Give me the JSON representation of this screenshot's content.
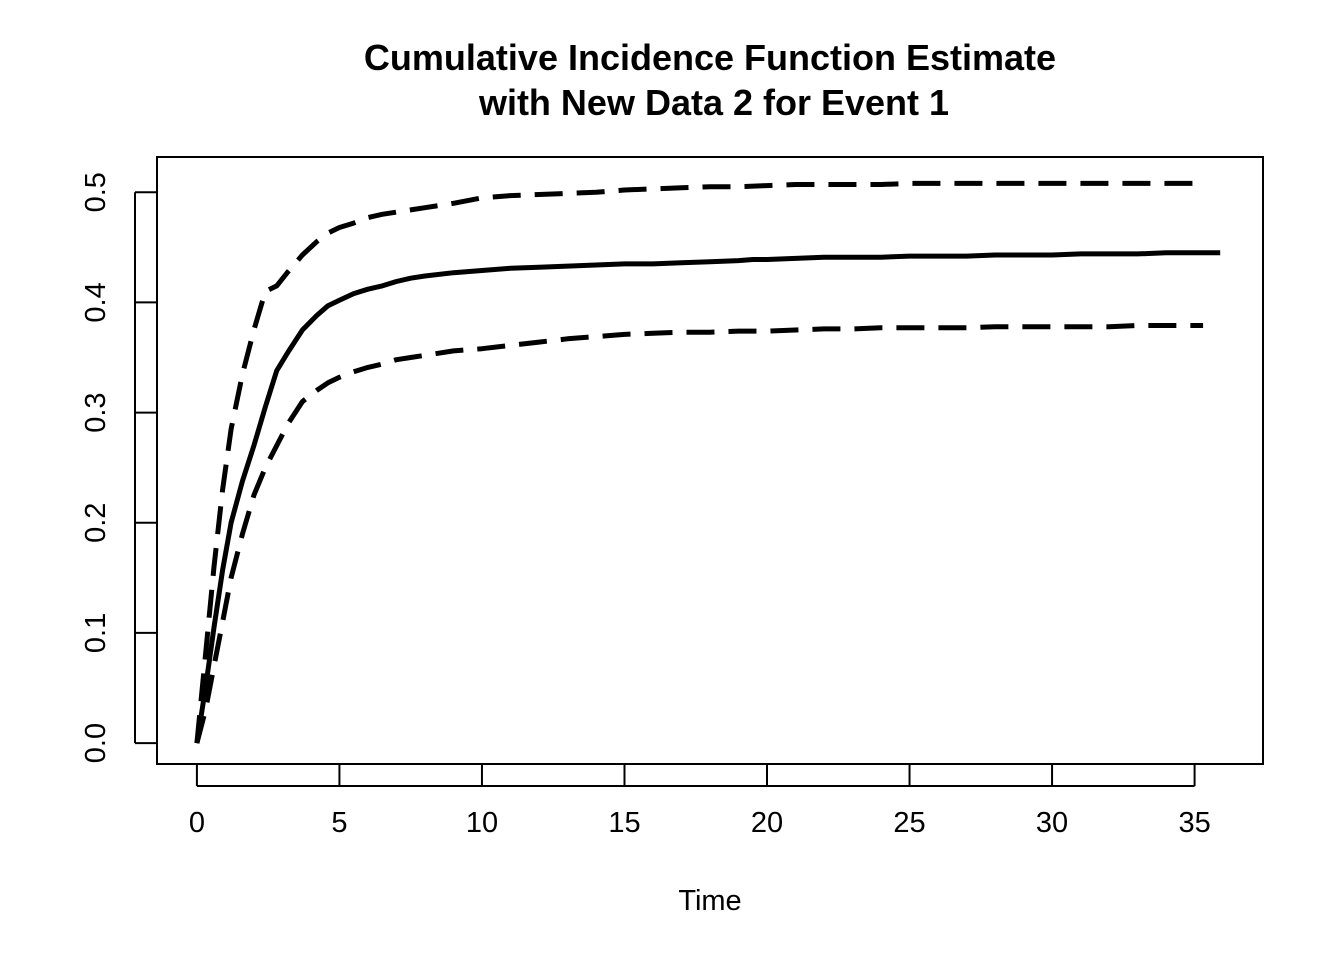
{
  "chart_data": {
    "type": "line",
    "title_line1": "Cumulative Incidence Function Estimate",
    "title_line2": "with New Data 2 for Event 1",
    "xlabel": "Time",
    "ylabel": "",
    "xlim": [
      -1.4,
      37.4
    ],
    "ylim": [
      -0.019,
      0.532
    ],
    "xticks": [
      0,
      5,
      10,
      15,
      20,
      25,
      30,
      35
    ],
    "xtick_labels": [
      "0",
      "5",
      "10",
      "15",
      "20",
      "25",
      "30",
      "35"
    ],
    "yticks": [
      0.0,
      0.1,
      0.2,
      0.3,
      0.4,
      0.5
    ],
    "ytick_labels": [
      "0.0",
      "0.1",
      "0.2",
      "0.3",
      "0.4",
      "0.5"
    ],
    "grid": false,
    "colors": {
      "line": "#000000",
      "frame": "#000000",
      "background": "#ffffff"
    },
    "series": [
      {
        "role": "estimate",
        "style": "solid",
        "x": [
          0,
          0.3,
          0.6,
          0.9,
          1.2,
          1.6,
          2.0,
          2.4,
          2.8,
          3.2,
          3.7,
          4.2,
          4.6,
          5.0,
          5.5,
          6.0,
          6.5,
          7.0,
          7.5,
          8.0,
          9.0,
          10.0,
          11.0,
          12.0,
          13.0,
          14.0,
          15.0,
          16.0,
          17.0,
          18.0,
          19.0,
          19.5,
          20.0,
          21.0,
          22.0,
          23.0,
          24.0,
          25.0,
          26.0,
          27.0,
          28.0,
          29.0,
          30.0,
          31.0,
          32.0,
          33.0,
          34.0,
          35.0,
          35.9
        ],
        "y": [
          0.0,
          0.05,
          0.105,
          0.157,
          0.2,
          0.238,
          0.27,
          0.305,
          0.338,
          0.355,
          0.375,
          0.388,
          0.397,
          0.402,
          0.408,
          0.412,
          0.415,
          0.419,
          0.422,
          0.424,
          0.427,
          0.429,
          0.431,
          0.432,
          0.433,
          0.434,
          0.435,
          0.435,
          0.436,
          0.437,
          0.438,
          0.439,
          0.439,
          0.44,
          0.441,
          0.441,
          0.441,
          0.442,
          0.442,
          0.442,
          0.443,
          0.443,
          0.443,
          0.444,
          0.444,
          0.444,
          0.445,
          0.445,
          0.445
        ]
      },
      {
        "role": "upper-bound",
        "style": "dashed",
        "x": [
          0,
          0.3,
          0.6,
          0.9,
          1.2,
          1.6,
          2.0,
          2.4,
          2.8,
          3.2,
          3.7,
          4.2,
          4.6,
          5.0,
          5.5,
          6.0,
          6.5,
          7.0,
          7.5,
          8.0,
          9.0,
          10.0,
          11.0,
          12.0,
          13.0,
          14.0,
          15.0,
          16.0,
          17.0,
          18.0,
          19.0,
          20.0,
          21.0,
          22.0,
          23.0,
          24.0,
          25.0,
          26.0,
          27.0,
          28.0,
          29.0,
          30.0,
          31.0,
          32.0,
          33.0,
          34.0,
          35.3
        ],
        "y": [
          0.0,
          0.08,
          0.16,
          0.23,
          0.285,
          0.335,
          0.375,
          0.41,
          0.415,
          0.428,
          0.443,
          0.455,
          0.463,
          0.468,
          0.472,
          0.477,
          0.48,
          0.482,
          0.484,
          0.486,
          0.49,
          0.495,
          0.497,
          0.498,
          0.499,
          0.5,
          0.502,
          0.503,
          0.504,
          0.505,
          0.505,
          0.506,
          0.507,
          0.507,
          0.507,
          0.507,
          0.508,
          0.508,
          0.508,
          0.508,
          0.508,
          0.508,
          0.508,
          0.508,
          0.508,
          0.508,
          0.508
        ]
      },
      {
        "role": "lower-bound",
        "style": "dashed",
        "x": [
          0,
          0.3,
          0.6,
          0.9,
          1.2,
          1.6,
          2.0,
          2.4,
          2.8,
          3.2,
          3.7,
          4.2,
          4.6,
          5.0,
          5.5,
          6.0,
          6.5,
          7.0,
          7.5,
          8.0,
          9.0,
          10.0,
          11.0,
          12.0,
          13.0,
          14.0,
          15.0,
          16.0,
          17.0,
          18.0,
          19.0,
          20.0,
          21.0,
          22.0,
          23.0,
          24.0,
          25.0,
          26.0,
          27.0,
          28.0,
          29.0,
          30.0,
          31.0,
          32.0,
          33.0,
          34.0,
          35.3
        ],
        "y": [
          0.0,
          0.03,
          0.07,
          0.11,
          0.15,
          0.19,
          0.225,
          0.25,
          0.27,
          0.29,
          0.31,
          0.32,
          0.327,
          0.332,
          0.337,
          0.341,
          0.344,
          0.348,
          0.35,
          0.352,
          0.356,
          0.358,
          0.361,
          0.364,
          0.367,
          0.369,
          0.371,
          0.372,
          0.373,
          0.373,
          0.374,
          0.374,
          0.375,
          0.376,
          0.376,
          0.377,
          0.377,
          0.377,
          0.377,
          0.378,
          0.378,
          0.378,
          0.378,
          0.378,
          0.379,
          0.379,
          0.379
        ]
      }
    ]
  }
}
